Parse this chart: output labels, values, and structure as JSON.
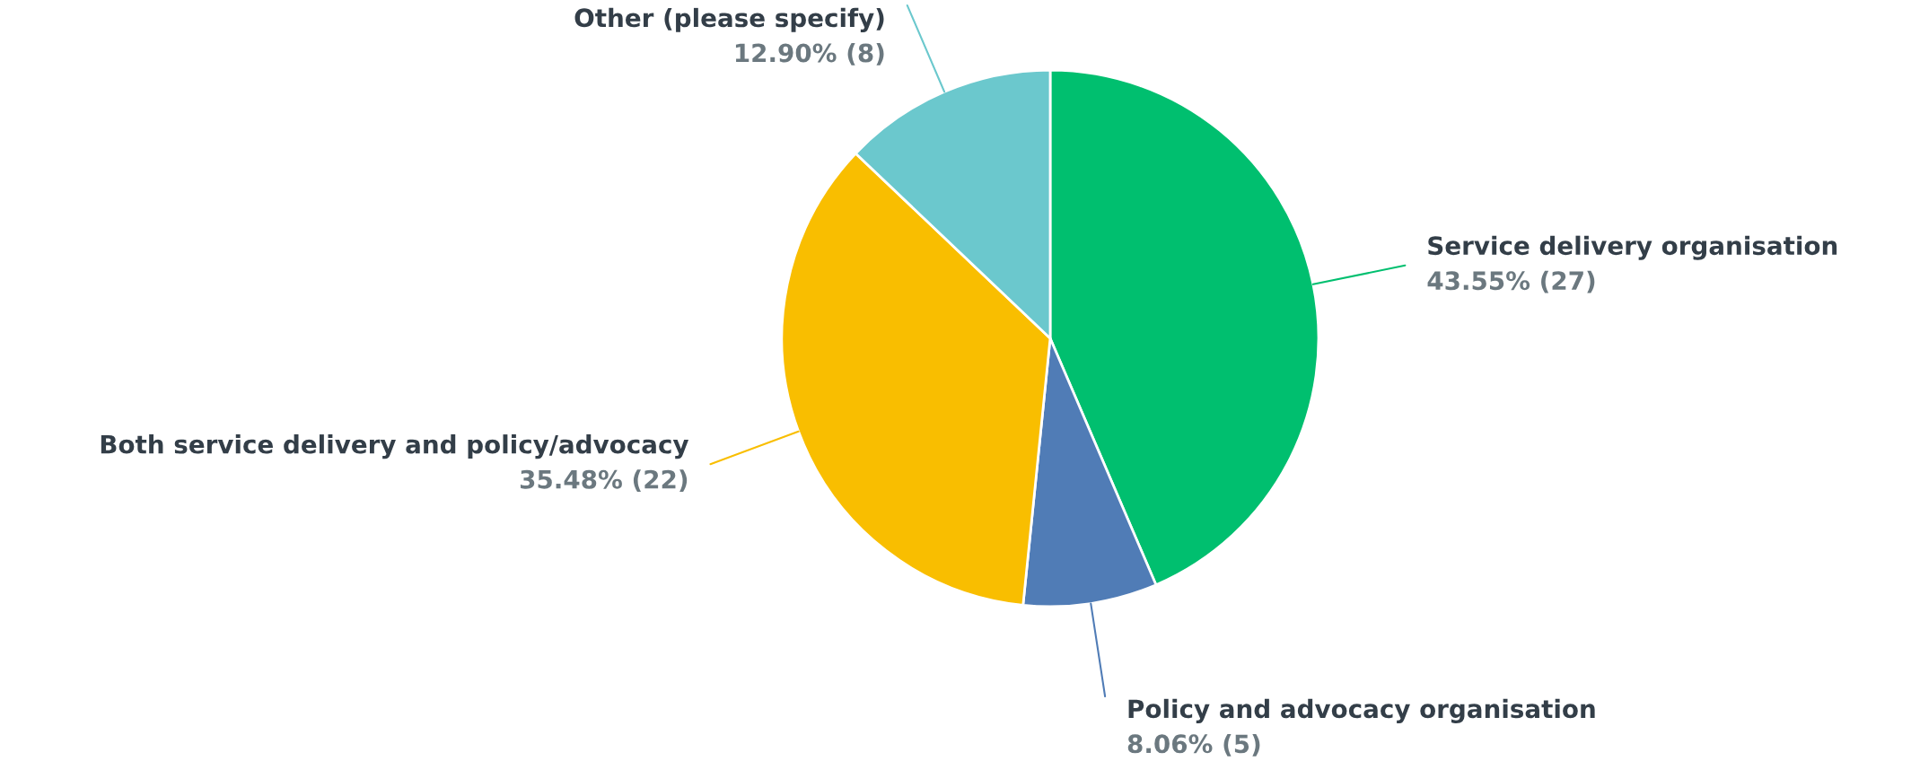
{
  "chart_data": {
    "type": "pie",
    "categories": [
      "Service delivery organisation",
      "Policy and advocacy organisation",
      "Both service delivery and policy/advocacy",
      "Other (please specify)"
    ],
    "values": [
      27,
      5,
      22,
      8
    ],
    "value_labels": [
      "43.55% (27)",
      "8.06% (5)",
      "35.48% (22)",
      "12.90% (8)"
    ],
    "colors": [
      "#00bf6f",
      "#507cb6",
      "#f9be00",
      "#6bc8cd"
    ]
  }
}
